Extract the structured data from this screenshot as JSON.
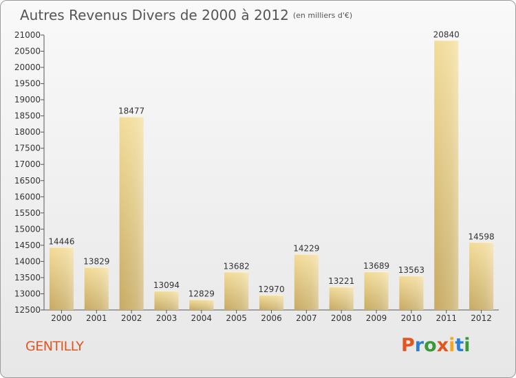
{
  "header": {
    "title": "Autres Revenus Divers de 2000 à 2012",
    "subtitle": "(en milliers d'€)"
  },
  "footer": {
    "commune": "GENTILLY",
    "logo": "Proxiti"
  },
  "colors": {
    "bar_light": "#f3dc98",
    "bar_dark": "#c7aa62",
    "commune": "#e2551f",
    "logo_letters": [
      "#e2551f",
      "#2d7fd4",
      "#3a9a3a",
      "#e2551f",
      "#f2a81d",
      "#2d7fd4",
      "#3a9a3a"
    ]
  },
  "chart_data": {
    "type": "bar",
    "title": "Autres Revenus Divers de 2000 à 2012",
    "subtitle": "(en milliers d'€)",
    "categories": [
      "2000",
      "2001",
      "2002",
      "2003",
      "2004",
      "2005",
      "2006",
      "2007",
      "2008",
      "2009",
      "2010",
      "2011",
      "2012"
    ],
    "values": [
      14446,
      13829,
      18477,
      13094,
      12829,
      13682,
      12970,
      14229,
      13221,
      13689,
      13563,
      20840,
      14598
    ],
    "ylim": [
      12500,
      21000
    ],
    "yticks": [
      12500,
      13000,
      13500,
      14000,
      14500,
      15000,
      15500,
      16000,
      16500,
      17000,
      17500,
      18000,
      18500,
      19000,
      19500,
      20000,
      20500,
      21000
    ],
    "grid": false,
    "legend": "none"
  }
}
